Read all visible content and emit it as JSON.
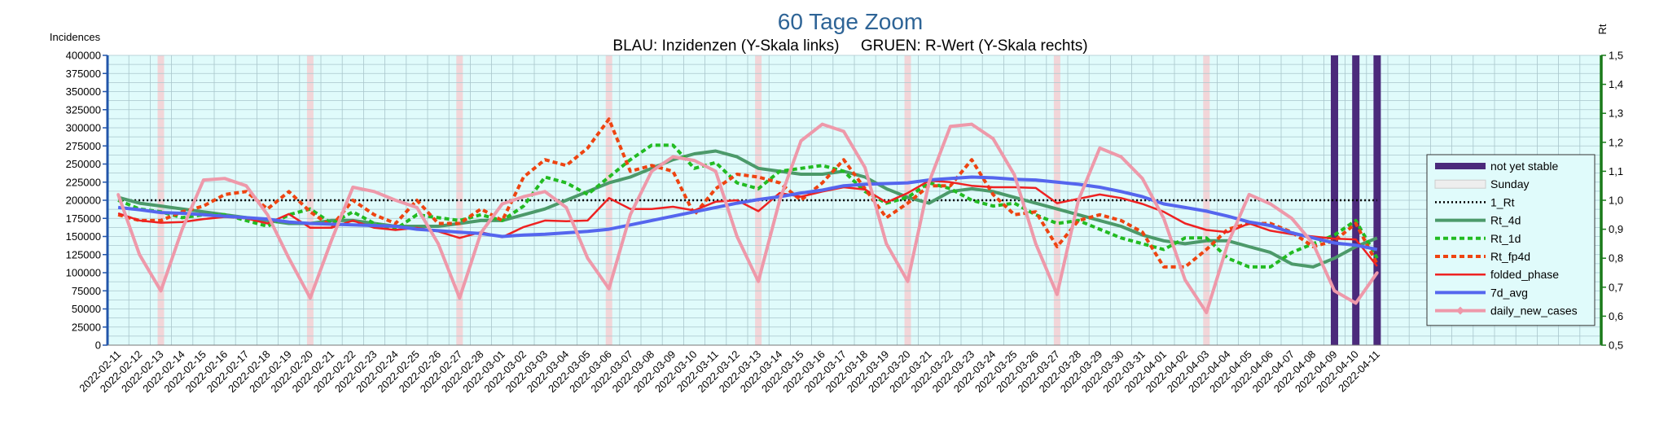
{
  "chart_data": {
    "type": "line",
    "title": "60 Tage Zoom",
    "subtitle": "BLAU: Inzidenzen (Y-Skala links)     GRUEN: R-Wert (Y-Skala rechts)",
    "ylabel": "Incidences",
    "y2label": "Rt",
    "ylim": [
      0,
      400000
    ],
    "y2lim": [
      0.5,
      1.5
    ],
    "yticks": [
      "0",
      "25000",
      "50000",
      "75000",
      "100000",
      "125000",
      "150000",
      "175000",
      "200000",
      "225000",
      "250000",
      "275000",
      "300000",
      "325000",
      "350000",
      "375000",
      "400000"
    ],
    "y2ticks": [
      "0,5",
      "0,6",
      "0,7",
      "0,8",
      "0,9",
      "1,0",
      "1,1",
      "1,2",
      "1,3",
      "1,4",
      "1,5"
    ],
    "x": [
      "2022-02-11",
      "2022-02-12",
      "2022-02-13",
      "2022-02-14",
      "2022-02-15",
      "2022-02-16",
      "2022-02-17",
      "2022-02-18",
      "2022-02-19",
      "2022-02-20",
      "2022-02-21",
      "2022-02-22",
      "2022-02-23",
      "2022-02-24",
      "2022-02-25",
      "2022-02-26",
      "2022-02-27",
      "2022-02-28",
      "2022-03-01",
      "2022-03-02",
      "2022-03-03",
      "2022-03-04",
      "2022-03-05",
      "2022-03-06",
      "2022-03-07",
      "2022-03-08",
      "2022-03-09",
      "2022-03-10",
      "2022-03-11",
      "2022-03-12",
      "2022-03-13",
      "2022-03-14",
      "2022-03-15",
      "2022-03-16",
      "2022-03-17",
      "2022-03-18",
      "2022-03-19",
      "2022-03-20",
      "2022-03-21",
      "2022-03-22",
      "2022-03-23",
      "2022-03-24",
      "2022-03-25",
      "2022-03-26",
      "2022-03-27",
      "2022-03-28",
      "2022-03-29",
      "2022-03-30",
      "2022-03-31",
      "2022-04-01",
      "2022-04-02",
      "2022-04-03",
      "2022-04-04",
      "2022-04-05",
      "2022-04-06",
      "2022-04-07",
      "2022-04-08",
      "2022-04-09",
      "2022-04-10",
      "2022-04-11"
    ],
    "sundays": [
      "2022-02-13",
      "2022-02-20",
      "2022-02-27",
      "2022-03-06",
      "2022-03-13",
      "2022-03-20",
      "2022-03-27",
      "2022-04-03",
      "2022-04-10"
    ],
    "not_yet_stable": [
      "2022-04-09",
      "2022-04-10",
      "2022-04-11"
    ],
    "legend_position": "right",
    "grid": true,
    "series": [
      {
        "name": "not yet stable",
        "axis": "none",
        "color": "#4b2a7b",
        "style": "bar"
      },
      {
        "name": "Sunday",
        "axis": "none",
        "color": "#dcdcdc",
        "style": "bar"
      },
      {
        "name": "1_Rt",
        "axis": "right",
        "color": "#000000",
        "style": "dotted",
        "values": [
          1.0,
          1.0,
          1.0,
          1.0,
          1.0,
          1.0,
          1.0,
          1.0,
          1.0,
          1.0,
          1.0,
          1.0,
          1.0,
          1.0,
          1.0,
          1.0,
          1.0,
          1.0,
          1.0,
          1.0,
          1.0,
          1.0,
          1.0,
          1.0,
          1.0,
          1.0,
          1.0,
          1.0,
          1.0,
          1.0,
          1.0,
          1.0,
          1.0,
          1.0,
          1.0,
          1.0,
          1.0,
          1.0,
          1.0,
          1.0,
          1.0,
          1.0,
          1.0,
          1.0,
          1.0,
          1.0,
          1.0,
          1.0,
          1.0,
          1.0,
          1.0,
          1.0,
          1.0,
          1.0,
          1.0,
          1.0,
          1.0,
          1.0,
          1.0,
          1.0
        ]
      },
      {
        "name": "Rt_4d",
        "axis": "right",
        "color": "#4c9a6a",
        "style": "solid",
        "values": [
          1.01,
          0.99,
          0.98,
          0.97,
          0.96,
          0.95,
          0.94,
          0.93,
          0.92,
          0.92,
          0.93,
          0.93,
          0.92,
          0.91,
          0.91,
          0.91,
          0.92,
          0.93,
          0.93,
          0.95,
          0.97,
          1.0,
          1.03,
          1.06,
          1.08,
          1.11,
          1.14,
          1.16,
          1.17,
          1.15,
          1.11,
          1.1,
          1.09,
          1.09,
          1.1,
          1.08,
          1.04,
          1.01,
          0.99,
          1.03,
          1.04,
          1.03,
          1.01,
          0.99,
          0.97,
          0.95,
          0.93,
          0.91,
          0.88,
          0.86,
          0.85,
          0.86,
          0.86,
          0.84,
          0.82,
          0.78,
          0.77,
          0.8,
          0.84,
          0.87
        ]
      },
      {
        "name": "Rt_1d",
        "axis": "right",
        "color": "#22bb22",
        "style": "dashed",
        "values": [
          1.0,
          0.97,
          0.96,
          0.94,
          0.95,
          0.95,
          0.93,
          0.91,
          0.95,
          0.97,
          0.92,
          0.96,
          0.92,
          0.9,
          0.95,
          0.94,
          0.93,
          0.95,
          0.93,
          0.98,
          1.08,
          1.06,
          1.02,
          1.08,
          1.14,
          1.19,
          1.19,
          1.11,
          1.13,
          1.06,
          1.04,
          1.1,
          1.11,
          1.12,
          1.1,
          1.03,
          0.99,
          1.01,
          1.06,
          1.04,
          1.0,
          0.98,
          0.99,
          0.95,
          0.92,
          0.93,
          0.9,
          0.87,
          0.85,
          0.83,
          0.87,
          0.87,
          0.8,
          0.77,
          0.77,
          0.82,
          0.85,
          0.88,
          0.93,
          0.8
        ]
      },
      {
        "name": "Rt_fp4d",
        "axis": "right",
        "color": "#ee4411",
        "style": "dashed",
        "values": [
          0.95,
          0.93,
          0.93,
          0.96,
          0.98,
          1.02,
          1.03,
          0.97,
          1.03,
          0.96,
          0.91,
          1.0,
          0.95,
          0.92,
          1.0,
          0.92,
          0.92,
          0.97,
          0.93,
          1.08,
          1.14,
          1.12,
          1.18,
          1.28,
          1.1,
          1.12,
          1.1,
          0.95,
          1.04,
          1.09,
          1.08,
          1.06,
          1.0,
          1.06,
          1.14,
          1.04,
          0.94,
          0.99,
          1.05,
          1.05,
          1.14,
          1.02,
          0.95,
          0.96,
          0.84,
          0.93,
          0.95,
          0.93,
          0.89,
          0.77,
          0.77,
          0.83,
          0.9,
          0.92,
          0.92,
          0.89,
          0.84,
          0.86,
          0.92,
          0.78
        ]
      },
      {
        "name": "folded_phase",
        "axis": "left",
        "color": "#ee2222",
        "style": "solid",
        "values": [
          182000,
          172000,
          169000,
          170000,
          174000,
          177000,
          175000,
          168000,
          181000,
          162000,
          162000,
          172000,
          162000,
          159000,
          162000,
          157000,
          148000,
          156000,
          149000,
          163000,
          172000,
          171000,
          172000,
          203000,
          188000,
          188000,
          191000,
          186000,
          198000,
          200000,
          185000,
          210000,
          205000,
          212000,
          218000,
          215000,
          197000,
          210000,
          227000,
          225000,
          220000,
          218000,
          218000,
          217000,
          196000,
          202000,
          208000,
          203000,
          195000,
          184000,
          168000,
          159000,
          156000,
          168000,
          158000,
          153000,
          150000,
          147000,
          146000,
          109000
        ]
      },
      {
        "name": "7d_avg",
        "axis": "left",
        "color": "#5566ee",
        "style": "solid",
        "values": [
          190000,
          187000,
          183000,
          182000,
          180000,
          178000,
          176000,
          174000,
          170000,
          168000,
          167000,
          166000,
          165000,
          164000,
          160000,
          158000,
          156000,
          154000,
          150000,
          152000,
          153000,
          155000,
          157000,
          160000,
          166000,
          172000,
          178000,
          184000,
          190000,
          196000,
          201000,
          205000,
          210000,
          214000,
          220000,
          222000,
          223000,
          224000,
          228000,
          230000,
          232000,
          231000,
          229000,
          228000,
          225000,
          222000,
          218000,
          212000,
          205000,
          195000,
          190000,
          185000,
          178000,
          170000,
          165000,
          155000,
          148000,
          141000,
          138000,
          132000
        ]
      },
      {
        "name": "daily_new_cases",
        "axis": "left",
        "color": "#ee99aa",
        "style": "marker",
        "values": [
          208000,
          125000,
          75000,
          160000,
          228000,
          230000,
          220000,
          180000,
          120000,
          65000,
          145000,
          218000,
          212000,
          200000,
          190000,
          140000,
          65000,
          155000,
          195000,
          205000,
          212000,
          190000,
          120000,
          78000,
          180000,
          240000,
          260000,
          255000,
          240000,
          150000,
          88000,
          200000,
          282000,
          305000,
          295000,
          245000,
          140000,
          88000,
          225000,
          302000,
          305000,
          285000,
          235000,
          140000,
          70000,
          200000,
          272000,
          260000,
          230000,
          175000,
          90000,
          45000,
          140000,
          208000,
          195000,
          175000,
          140000,
          75000,
          58000,
          100000
        ]
      }
    ]
  }
}
